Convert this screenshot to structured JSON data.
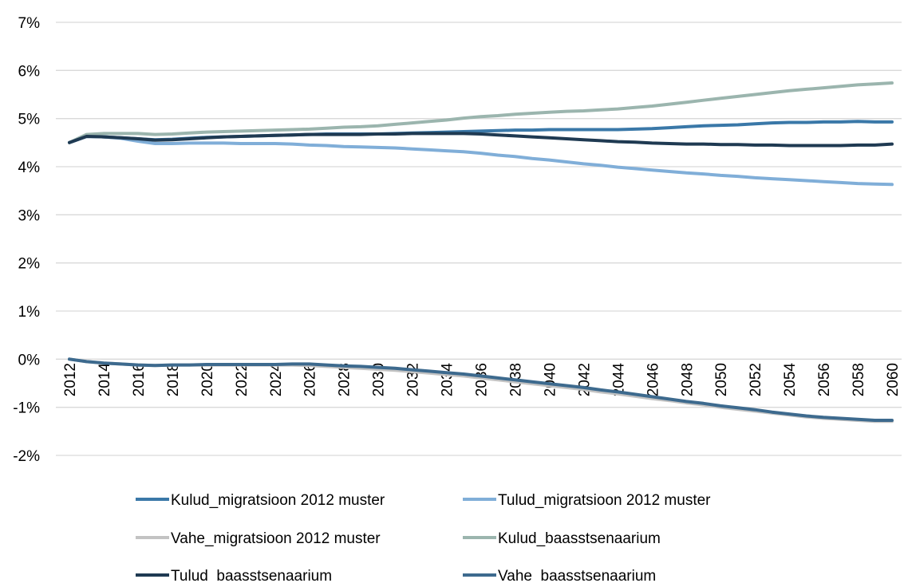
{
  "chart_data": {
    "type": "line",
    "categories": [
      "2012",
      null,
      "2014",
      null,
      "2016",
      null,
      "2018",
      null,
      "2020",
      null,
      "2022",
      null,
      "2024",
      null,
      "2026",
      null,
      "2028",
      null,
      "2030",
      null,
      "2032",
      null,
      "2034",
      null,
      "2036",
      null,
      "2038",
      null,
      "2040",
      null,
      "2042",
      null,
      "2044",
      null,
      "2046",
      null,
      "2048",
      null,
      "2050",
      null,
      "2052",
      null,
      "2054",
      null,
      "2056",
      null,
      "2058",
      null,
      "2060"
    ],
    "ylim": [
      -2,
      7
    ],
    "yticks": [
      {
        "value": -2,
        "label": "-2%"
      },
      {
        "value": -1,
        "label": "-1%"
      },
      {
        "value": 0,
        "label": "0%"
      },
      {
        "value": 1,
        "label": "1%"
      },
      {
        "value": 2,
        "label": "2%"
      },
      {
        "value": 3,
        "label": "3%"
      },
      {
        "value": 4,
        "label": "4%"
      },
      {
        "value": 5,
        "label": "5%"
      },
      {
        "value": 6,
        "label": "6%"
      },
      {
        "value": 7,
        "label": "7%"
      }
    ],
    "grid": true,
    "legend": "bottom",
    "series": [
      {
        "name": "Kulud_migratsioon 2012 muster",
        "color": "#3a78a8",
        "values": [
          4.5,
          4.63,
          4.62,
          4.6,
          4.58,
          4.56,
          4.57,
          4.59,
          4.61,
          4.62,
          4.63,
          4.64,
          4.65,
          4.66,
          4.67,
          4.68,
          4.68,
          4.68,
          4.68,
          4.69,
          4.7,
          4.71,
          4.72,
          4.73,
          4.74,
          4.75,
          4.76,
          4.76,
          4.77,
          4.77,
          4.77,
          4.77,
          4.77,
          4.78,
          4.79,
          4.81,
          4.83,
          4.85,
          4.86,
          4.87,
          4.89,
          4.91,
          4.92,
          4.92,
          4.93,
          4.93,
          4.94,
          4.93,
          4.93
        ]
      },
      {
        "name": "Tulud_migratsioon 2012 muster",
        "color": "#80aed8",
        "values": [
          4.5,
          4.63,
          4.62,
          4.59,
          4.53,
          4.48,
          4.48,
          4.49,
          4.49,
          4.49,
          4.48,
          4.48,
          4.48,
          4.47,
          4.45,
          4.44,
          4.42,
          4.41,
          4.4,
          4.39,
          4.37,
          4.35,
          4.33,
          4.31,
          4.28,
          4.24,
          4.21,
          4.17,
          4.14,
          4.1,
          4.06,
          4.03,
          3.99,
          3.96,
          3.93,
          3.9,
          3.87,
          3.85,
          3.82,
          3.8,
          3.77,
          3.75,
          3.73,
          3.71,
          3.69,
          3.67,
          3.65,
          3.64,
          3.63
        ]
      },
      {
        "name": "Vahe_migratsioon 2012 muster",
        "color": "#c3c3c3",
        "values": [
          0,
          -0.05,
          -0.08,
          -0.1,
          -0.12,
          -0.13,
          -0.12,
          -0.12,
          -0.12,
          -0.12,
          -0.12,
          -0.12,
          -0.12,
          -0.12,
          -0.13,
          -0.15,
          -0.17,
          -0.19,
          -0.21,
          -0.23,
          -0.26,
          -0.29,
          -0.32,
          -0.35,
          -0.39,
          -0.43,
          -0.47,
          -0.51,
          -0.55,
          -0.59,
          -0.63,
          -0.68,
          -0.72,
          -0.77,
          -0.82,
          -0.86,
          -0.91,
          -0.95,
          -1.0,
          -1.04,
          -1.08,
          -1.12,
          -1.16,
          -1.2,
          -1.23,
          -1.25,
          -1.27,
          -1.29,
          -1.29
        ]
      },
      {
        "name": "Kulud_baasstsenaarium",
        "color": "#9bb5ae",
        "values": [
          4.5,
          4.67,
          4.69,
          4.69,
          4.69,
          4.67,
          4.68,
          4.7,
          4.72,
          4.73,
          4.74,
          4.75,
          4.76,
          4.77,
          4.78,
          4.8,
          4.82,
          4.83,
          4.85,
          4.88,
          4.91,
          4.94,
          4.97,
          5.01,
          5.04,
          5.06,
          5.09,
          5.11,
          5.13,
          5.15,
          5.16,
          5.18,
          5.2,
          5.23,
          5.26,
          5.3,
          5.34,
          5.38,
          5.42,
          5.46,
          5.5,
          5.54,
          5.58,
          5.61,
          5.64,
          5.67,
          5.7,
          5.72,
          5.74
        ]
      },
      {
        "name": "Tulud  baasstsenaarium",
        "color": "#1f3a52",
        "values": [
          4.5,
          4.63,
          4.62,
          4.6,
          4.58,
          4.55,
          4.56,
          4.58,
          4.6,
          4.62,
          4.63,
          4.64,
          4.65,
          4.66,
          4.67,
          4.67,
          4.67,
          4.67,
          4.68,
          4.68,
          4.69,
          4.69,
          4.69,
          4.69,
          4.68,
          4.66,
          4.64,
          4.62,
          4.6,
          4.58,
          4.56,
          4.54,
          4.52,
          4.51,
          4.49,
          4.48,
          4.47,
          4.47,
          4.46,
          4.46,
          4.45,
          4.45,
          4.44,
          4.44,
          4.44,
          4.44,
          4.45,
          4.45,
          4.47
        ]
      },
      {
        "name": "Vahe  baasstsenaarium",
        "color": "#3d6a8e",
        "values": [
          0,
          -0.05,
          -0.08,
          -0.1,
          -0.12,
          -0.13,
          -0.12,
          -0.12,
          -0.11,
          -0.11,
          -0.11,
          -0.11,
          -0.11,
          -0.1,
          -0.1,
          -0.12,
          -0.14,
          -0.15,
          -0.17,
          -0.19,
          -0.22,
          -0.25,
          -0.28,
          -0.31,
          -0.35,
          -0.39,
          -0.43,
          -0.47,
          -0.51,
          -0.55,
          -0.59,
          -0.64,
          -0.68,
          -0.73,
          -0.78,
          -0.83,
          -0.88,
          -0.92,
          -0.97,
          -1.01,
          -1.05,
          -1.1,
          -1.14,
          -1.18,
          -1.21,
          -1.23,
          -1.25,
          -1.27,
          -1.27
        ]
      }
    ]
  }
}
